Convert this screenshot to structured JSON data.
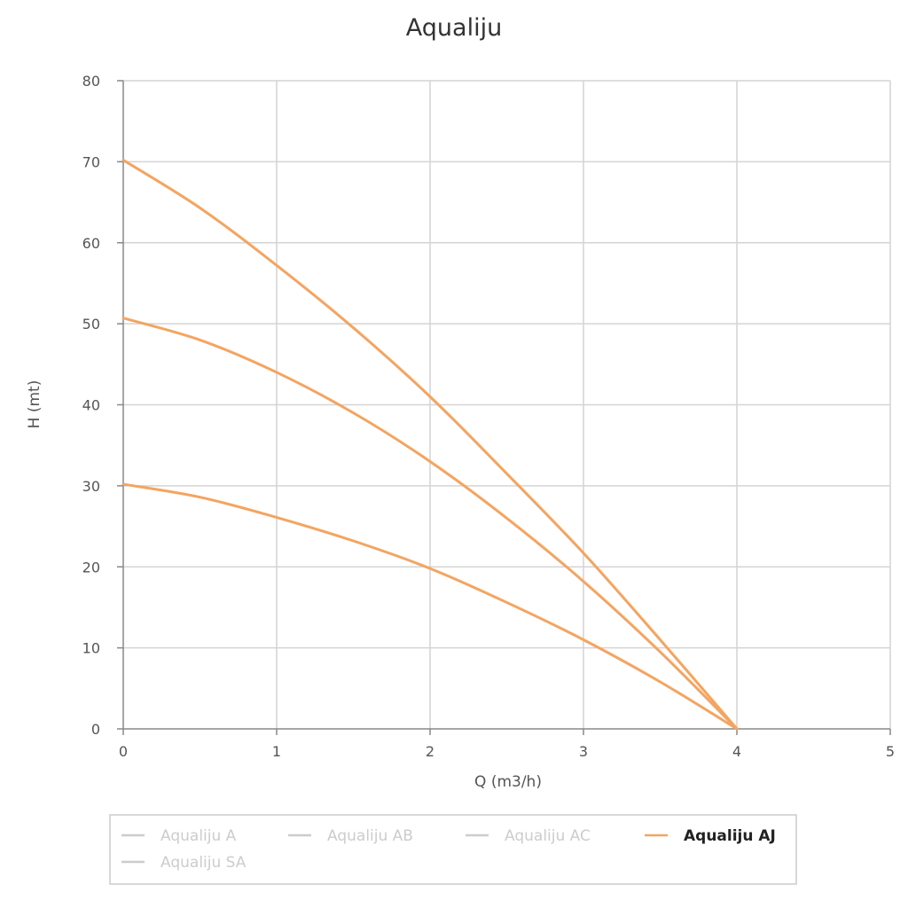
{
  "chart_data": {
    "type": "line",
    "title": "Aqualiju",
    "xlabel": "Q (m3/h)",
    "ylabel": "H (mt)",
    "xlim": [
      0,
      5
    ],
    "ylim": [
      0,
      80
    ],
    "x_ticks": [
      "0",
      "1",
      "2",
      "3",
      "4",
      "5"
    ],
    "y_ticks": [
      "0",
      "10",
      "20",
      "30",
      "40",
      "50",
      "60",
      "70",
      "80"
    ],
    "grid": true,
    "legend_position": "bottom",
    "series": [
      {
        "color": "#f4a460",
        "x": [
          0,
          0.5,
          1,
          1.5,
          2,
          2.5,
          3,
          3.5,
          4
        ],
        "y": [
          70.2,
          64.3,
          57.2,
          49.5,
          41,
          31.5,
          21.7,
          11,
          0
        ]
      },
      {
        "color": "#f4a460",
        "x": [
          0,
          0.5,
          1,
          1.5,
          2,
          2.5,
          3,
          3.5,
          4
        ],
        "y": [
          50.7,
          48,
          44,
          39,
          33,
          26,
          18.2,
          9.5,
          0
        ]
      },
      {
        "color": "#f4a460",
        "x": [
          0,
          0.5,
          1,
          1.5,
          2,
          2.5,
          3,
          3.5,
          4
        ],
        "y": [
          30.2,
          28.6,
          26.1,
          23.2,
          19.8,
          15.6,
          11,
          5.8,
          0
        ]
      }
    ],
    "legend": [
      {
        "label": "Aqualiju A",
        "state": "hidden",
        "color": "#cccccc"
      },
      {
        "label": "Aqualiju AB",
        "state": "hidden",
        "color": "#cccccc"
      },
      {
        "label": "Aqualiju AC",
        "state": "hidden",
        "color": "#cccccc"
      },
      {
        "label": "Aqualiju AJ",
        "state": "visible",
        "color": "#f4a460"
      },
      {
        "label": "Aqualiju SA",
        "state": "hidden",
        "color": "#cccccc"
      }
    ]
  }
}
